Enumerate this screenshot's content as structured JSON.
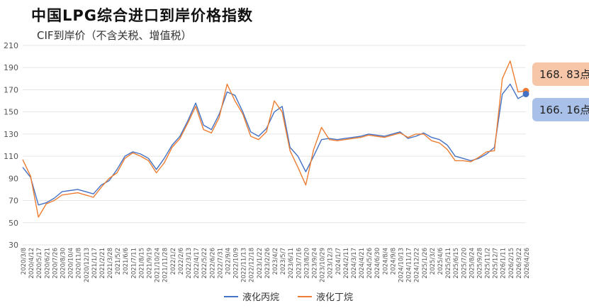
{
  "colors": {
    "series_1": "#4472c4",
    "series_2": "#ed7d31",
    "callout_1_bg": "#f7c6a8",
    "callout_2_bg": "#a9c1e8",
    "grid": "#e6e6e6",
    "axis_text": "#555555"
  },
  "chart_data": {
    "type": "line",
    "title": "中国LPG综合进口到岸价格指数",
    "subtitle": "CIF到岸价（不含关税、增值税）",
    "ylim": [
      30,
      210
    ],
    "yticks": [
      30,
      50,
      70,
      90,
      110,
      130,
      150,
      170,
      190,
      210
    ],
    "grid": "horizontal",
    "legend_position": "bottom",
    "xticks": [
      "2020/3/8",
      "2020/4/12",
      "2020/5/17",
      "2020/6/21",
      "2020/7/26",
      "2020/8/30",
      "2020/10/4",
      "2020/11/8",
      "2020/12/13",
      "2021/1/17",
      "2021/2/21",
      "2021/3/28",
      "2021/5/2",
      "2021/6/6",
      "2021/7/11",
      "2021/8/15",
      "2021/9/19",
      "2021/10/24",
      "2021/11/28",
      "2022/1/2",
      "2022/2/6",
      "2022/3/13",
      "2022/4/17",
      "2022/5/22",
      "2022/6/26",
      "2022/7/31",
      "2022/9/4",
      "2022/10/9",
      "2022/11/13",
      "2022/12/18",
      "2023/1/22",
      "2023/2/26",
      "2023/4/2",
      "2023/5/7",
      "2023/6/11",
      "2023/7/16",
      "2023/8/20",
      "2023/9/24",
      "2023/10/29",
      "2023/12/3",
      "2024/1/7",
      "2024/2/11",
      "2024/3/17",
      "2024/4/21",
      "2024/5/26",
      "2024/6/30",
      "2024/8/4",
      "2024/9/8",
      "2024/10/13",
      "2024/11/17",
      "2024/12/22",
      "2025/1/26",
      "2025/3/2",
      "2025/4/6",
      "2025/5/11",
      "2025/6/15",
      "2025/7/20",
      "2025/8/24",
      "2025/9/28",
      "2025/11/2",
      "2025/12/7",
      "2026/1/11",
      "2026/2/15",
      "2026/3/22",
      "2026/4/26"
    ],
    "series": [
      {
        "name": "液化丙烷",
        "color": "#4472c4",
        "values": [
          100,
          91,
          66,
          68,
          72,
          78,
          79,
          80,
          78,
          76,
          84,
          88,
          98,
          110,
          114,
          112,
          108,
          98,
          108,
          120,
          128,
          142,
          158,
          138,
          134,
          148,
          168,
          165,
          150,
          132,
          128,
          135,
          150,
          155,
          118,
          110,
          96,
          110,
          125,
          126,
          125,
          126,
          127,
          128,
          130,
          129,
          128,
          130,
          132,
          126,
          128,
          131,
          127,
          125,
          120,
          110,
          108,
          106,
          108,
          112,
          118,
          166,
          175,
          162,
          166
        ]
      },
      {
        "name": "液化丁烷",
        "color": "#ed7d31",
        "values": [
          107,
          92,
          55,
          67,
          70,
          75,
          76,
          77,
          75,
          73,
          82,
          90,
          95,
          108,
          113,
          110,
          106,
          95,
          104,
          118,
          126,
          140,
          155,
          134,
          131,
          145,
          175,
          160,
          148,
          128,
          125,
          132,
          160,
          150,
          115,
          100,
          84,
          116,
          136,
          125,
          124,
          125,
          126,
          127,
          129,
          128,
          127,
          129,
          131,
          127,
          130,
          130,
          124,
          122,
          116,
          106,
          106,
          105,
          109,
          114,
          115,
          180,
          196,
          168,
          169
        ]
      }
    ],
    "callouts": [
      {
        "text": "168. 83点",
        "series": "液化丁烷",
        "value": 168.83
      },
      {
        "text": "166. 16点",
        "series": "液化丙烷",
        "value": 166.16
      }
    ]
  }
}
